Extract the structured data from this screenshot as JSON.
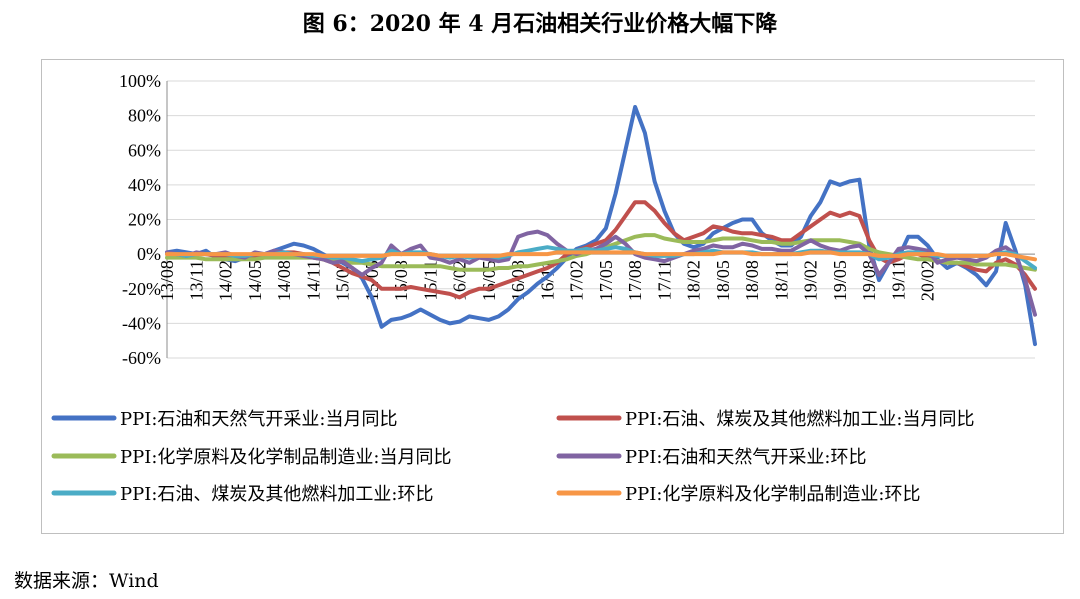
{
  "figure": {
    "title": "图 6：2020 年 4 月石油相关行业价格大幅下降",
    "source": "数据来源：Wind"
  },
  "chart_data": {
    "type": "line",
    "title": "",
    "xlabel": "",
    "ylabel": "",
    "ylim": [
      -60,
      100
    ],
    "y_unit": "%",
    "y_ticks": [
      "100%",
      "80%",
      "60%",
      "40%",
      "20%",
      "0%",
      "-20%",
      "-40%",
      "-60%"
    ],
    "x_tick_labels": [
      "13/08",
      "13/11",
      "14/02",
      "14/05",
      "14/08",
      "14/11",
      "15/02",
      "15/05",
      "15/08",
      "15/11",
      "16/02",
      "16/05",
      "16/08",
      "16/11",
      "17/02",
      "17/05",
      "17/08",
      "17/11",
      "18/02",
      "18/05",
      "18/08",
      "18/11",
      "19/02",
      "19/05",
      "19/08",
      "19/11",
      "20/02"
    ],
    "x_start": "2013-08",
    "x_end": "2020-04",
    "grid": true,
    "legend_position": "bottom",
    "series": [
      {
        "name": "PPI:石油和天然气开采业:当月同比",
        "color": "#4472c4",
        "values": [
          1,
          2,
          1,
          0,
          2,
          -2,
          -3,
          -4,
          -2,
          -1,
          0,
          2,
          4,
          6,
          5,
          3,
          0,
          -3,
          -5,
          -8,
          -14,
          -25,
          -42,
          -38,
          -37,
          -35,
          -32,
          -35,
          -38,
          -40,
          -39,
          -36,
          -37,
          -38,
          -36,
          -32,
          -26,
          -22,
          -17,
          -13,
          -8,
          -2,
          3,
          5,
          8,
          15,
          35,
          60,
          85,
          70,
          42,
          25,
          12,
          6,
          4,
          6,
          12,
          15,
          18,
          20,
          20,
          12,
          8,
          5,
          5,
          10,
          22,
          30,
          42,
          40,
          42,
          43,
          5,
          -15,
          -5,
          -2,
          10,
          10,
          5,
          -3,
          -8,
          -5,
          -8,
          -12,
          -18,
          -10,
          18,
          2,
          -18,
          -52
        ]
      },
      {
        "name": "PPI:石油、煤炭及其他燃料加工业:当月同比",
        "color": "#c0504d",
        "values": [
          0,
          -1,
          -1,
          0,
          0,
          -1,
          -1,
          -2,
          -2,
          -1,
          0,
          1,
          1,
          1,
          0,
          -2,
          -3,
          -5,
          -8,
          -11,
          -13,
          -15,
          -20,
          -20,
          -20,
          -19,
          -20,
          -21,
          -22,
          -23,
          -25,
          -22,
          -20,
          -20,
          -18,
          -16,
          -14,
          -12,
          -10,
          -8,
          -5,
          0,
          2,
          4,
          6,
          8,
          14,
          22,
          30,
          30,
          25,
          18,
          12,
          8,
          10,
          12,
          16,
          15,
          13,
          12,
          12,
          11,
          10,
          8,
          8,
          12,
          16,
          20,
          24,
          22,
          24,
          22,
          8,
          -2,
          -5,
          -3,
          0,
          0,
          -2,
          -4,
          -5,
          -5,
          -7,
          -9,
          -10,
          -5,
          -3,
          -6,
          -12,
          -20
        ]
      },
      {
        "name": "PPI:化学原料及化学制品制造业:当月同比",
        "color": "#9bbb59",
        "values": [
          -2,
          -2,
          -2,
          -2,
          -3,
          -3,
          -3,
          -3,
          -3,
          -3,
          -2,
          -2,
          -2,
          -2,
          -2,
          -2,
          -3,
          -3,
          -4,
          -5,
          -5,
          -6,
          -7,
          -7,
          -7,
          -7,
          -7,
          -7,
          -7,
          -8,
          -9,
          -9,
          -9,
          -9,
          -8,
          -8,
          -7,
          -7,
          -6,
          -5,
          -4,
          -3,
          -1,
          0,
          2,
          4,
          6,
          8,
          10,
          11,
          11,
          9,
          8,
          7,
          7,
          7,
          8,
          9,
          9,
          9,
          8,
          7,
          7,
          6,
          6,
          7,
          8,
          8,
          8,
          8,
          7,
          6,
          3,
          1,
          0,
          -1,
          -2,
          -3,
          -3,
          -4,
          -5,
          -5,
          -5,
          -6,
          -6,
          -6,
          -6,
          -7,
          -8,
          -9
        ]
      },
      {
        "name": "PPI:石油和天然气开采业:环比",
        "color": "#8064a2",
        "values": [
          1,
          0,
          -1,
          1,
          0,
          0,
          1,
          -1,
          -2,
          1,
          0,
          2,
          1,
          0,
          -1,
          -2,
          -3,
          -5,
          -4,
          -8,
          -12,
          -8,
          -5,
          5,
          0,
          3,
          5,
          -2,
          -3,
          -5,
          -3,
          -5,
          -2,
          -3,
          -4,
          -3,
          10,
          12,
          13,
          11,
          6,
          2,
          0,
          2,
          3,
          6,
          10,
          6,
          0,
          -2,
          -3,
          -4,
          -2,
          0,
          2,
          3,
          5,
          4,
          4,
          6,
          5,
          3,
          3,
          2,
          2,
          5,
          8,
          5,
          3,
          2,
          4,
          5,
          0,
          -12,
          -5,
          3,
          4,
          3,
          2,
          -5,
          -3,
          -2,
          -3,
          -4,
          -2,
          2,
          4,
          0,
          -15,
          -35
        ]
      },
      {
        "name": "PPI:石油、煤炭及其他燃料加工业:环比",
        "color": "#4bacc6",
        "values": [
          0,
          0,
          -1,
          0,
          0,
          0,
          0,
          -1,
          -1,
          0,
          0,
          0,
          1,
          0,
          0,
          -1,
          -1,
          -2,
          -2,
          -3,
          -4,
          -3,
          -2,
          2,
          0,
          1,
          1,
          0,
          -1,
          -2,
          -1,
          -2,
          -1,
          -1,
          -2,
          -1,
          1,
          2,
          3,
          4,
          3,
          2,
          2,
          3,
          2,
          3,
          4,
          3,
          1,
          0,
          -1,
          -1,
          -1,
          0,
          0,
          1,
          2,
          1,
          1,
          1,
          1,
          0,
          0,
          0,
          0,
          1,
          2,
          2,
          1,
          1,
          1,
          1,
          0,
          -3,
          -2,
          0,
          1,
          1,
          0,
          -1,
          -1,
          -1,
          -1,
          -1,
          -1,
          0,
          1,
          0,
          -4,
          -8
        ]
      },
      {
        "name": "PPI:化学原料及化学制品制造业:环比",
        "color": "#f79646",
        "values": [
          0,
          0,
          0,
          0,
          0,
          0,
          0,
          0,
          0,
          0,
          0,
          0,
          0,
          0,
          0,
          0,
          -1,
          -1,
          -1,
          -1,
          -1,
          -1,
          -1,
          0,
          0,
          0,
          0,
          0,
          -1,
          -1,
          -1,
          -1,
          -1,
          -1,
          -1,
          0,
          0,
          0,
          0,
          0,
          1,
          1,
          1,
          1,
          1,
          1,
          1,
          1,
          1,
          0,
          0,
          0,
          0,
          0,
          0,
          0,
          0,
          1,
          1,
          1,
          0,
          0,
          0,
          0,
          0,
          0,
          1,
          1,
          1,
          0,
          0,
          0,
          0,
          -1,
          -1,
          -1,
          0,
          0,
          0,
          0,
          -1,
          -1,
          -1,
          -1,
          -1,
          0,
          0,
          -1,
          -2,
          -3
        ]
      }
    ]
  }
}
